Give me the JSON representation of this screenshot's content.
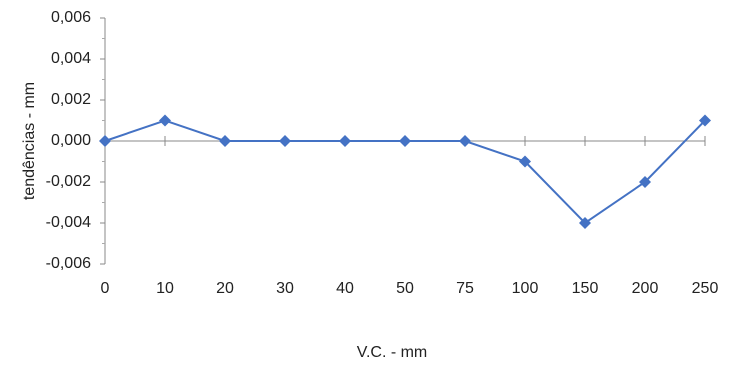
{
  "chart_data": {
    "type": "line",
    "title": "",
    "xlabel": "V.C. - mm",
    "ylabel": "tendências - mm",
    "categories": [
      "0",
      "10",
      "20",
      "30",
      "40",
      "50",
      "75",
      "100",
      "150",
      "200",
      "250"
    ],
    "series": [
      {
        "values": [
          0.0,
          0.001,
          0.0,
          0.0,
          0.0,
          0.0,
          0.0,
          -0.001,
          -0.004,
          -0.002,
          0.001
        ],
        "color": "#4472C4",
        "marker": "diamond"
      }
    ],
    "ylim": [
      -0.006,
      0.006
    ],
    "yticks": [
      "-0,006",
      "-0,004",
      "-0,002",
      "0,000",
      "0,002",
      "0,004",
      "0,006"
    ],
    "ytick_values": [
      -0.006,
      -0.004,
      -0.002,
      0.0,
      0.002,
      0.004,
      0.006
    ],
    "grid": false,
    "legend": "none"
  }
}
